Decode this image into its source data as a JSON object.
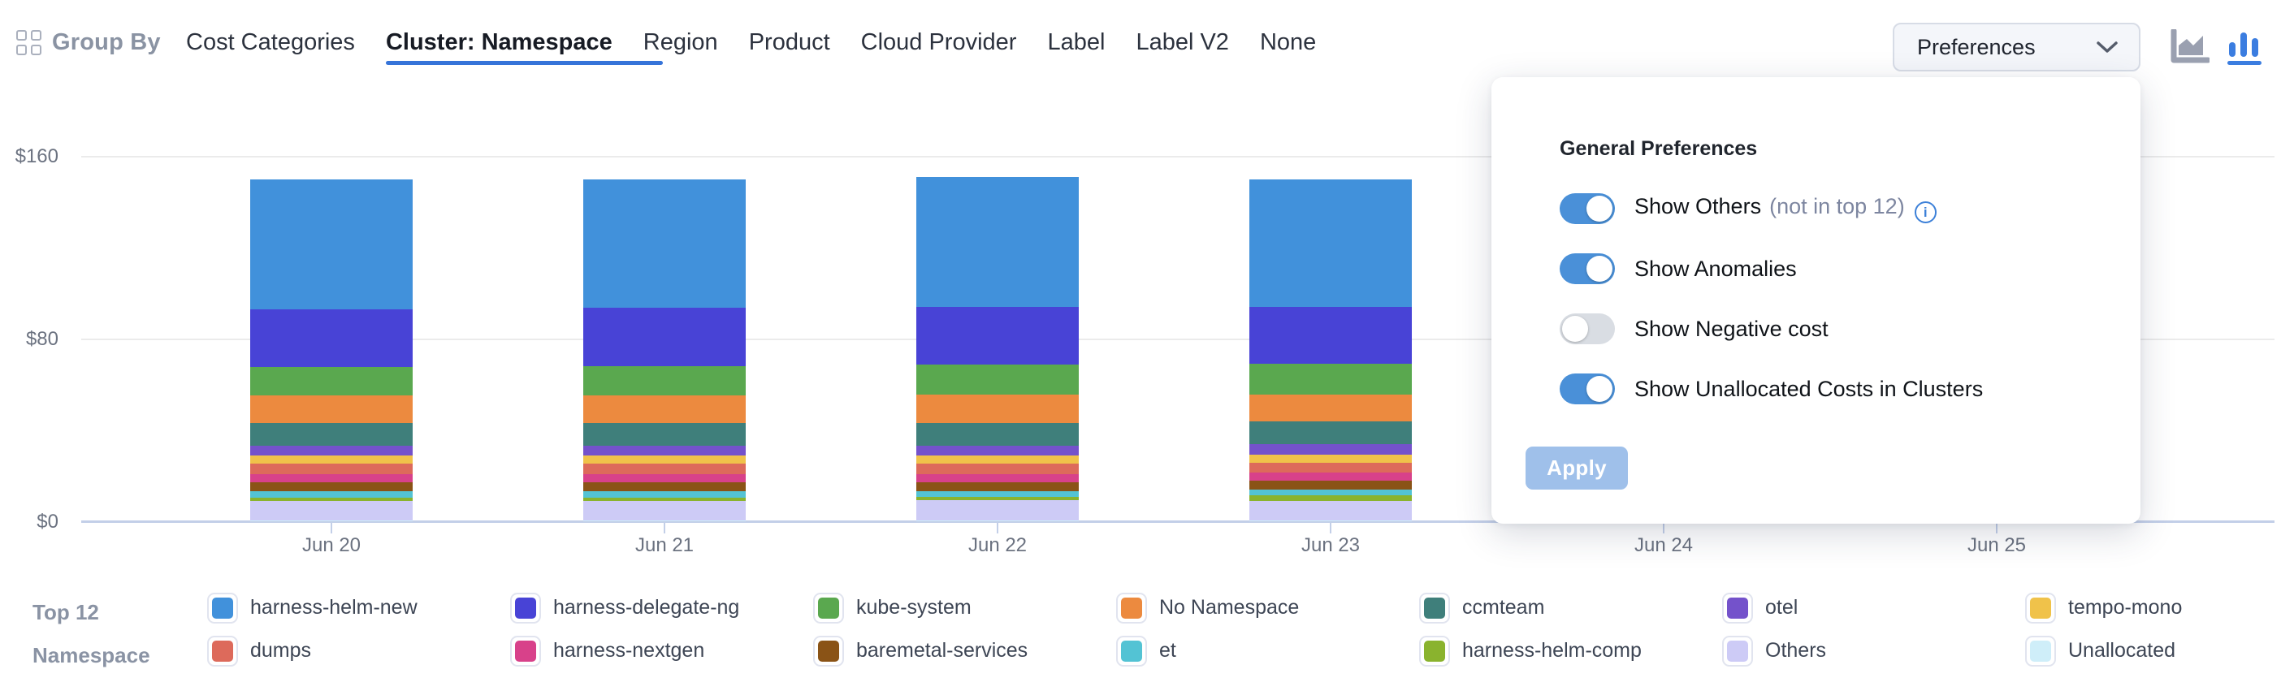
{
  "header": {
    "group_by_label": "Group By",
    "tabs": [
      {
        "label": "Cost Categories",
        "active": false
      },
      {
        "label": "Cluster: Namespace",
        "active": true
      },
      {
        "label": "Region",
        "active": false
      },
      {
        "label": "Product",
        "active": false
      },
      {
        "label": "Cloud Provider",
        "active": false
      },
      {
        "label": "Label",
        "active": false
      },
      {
        "label": "Label V2",
        "active": false
      },
      {
        "label": "None",
        "active": false
      }
    ],
    "preferences_button_label": "Preferences",
    "chart_type_icons": [
      {
        "name": "area-chart-icon",
        "active": false,
        "color": "#9aa0b0"
      },
      {
        "name": "bar-chart-icon",
        "active": true,
        "color": "#3b7de0"
      }
    ],
    "active_tab_underline_color": "#3674d9"
  },
  "preferences_popup": {
    "title": "General Preferences",
    "toggles": [
      {
        "label": "Show Others",
        "suffix": "(not in top 12)",
        "has_info_icon": true,
        "on": true
      },
      {
        "label": "Show Anomalies",
        "suffix": "",
        "has_info_icon": false,
        "on": true
      },
      {
        "label": "Show Negative cost",
        "suffix": "",
        "has_info_icon": false,
        "on": false
      },
      {
        "label": "Show Unallocated Costs in Clusters",
        "suffix": "",
        "has_info_icon": false,
        "on": true
      }
    ],
    "apply_label": "Apply",
    "apply_disabled": true,
    "toggle_on_color": "#4a90d8",
    "toggle_off_color": "#d9dde3"
  },
  "chart_data": {
    "type": "bar",
    "stacked": true,
    "x": [
      "Jun 20",
      "Jun 21",
      "Jun 22",
      "Jun 23",
      "Jun 24",
      "Jun 25"
    ],
    "ylabel": "",
    "yticks": [
      "$0",
      "$80",
      "$160"
    ],
    "ylim": [
      0,
      160
    ],
    "grid": true,
    "note": "Columns for Jun 24 and Jun 25 are hidden behind the open Preferences popup; only their x-axis labels are visible.",
    "series": [
      {
        "name": "harness-helm-new",
        "color": "#4191db",
        "values": [
          57,
          56.5,
          57,
          56
        ]
      },
      {
        "name": "harness-delegate-ng",
        "color": "#4843d6",
        "values": [
          25.5,
          25.5,
          25.5,
          25
        ]
      },
      {
        "name": "kube-system",
        "color": "#5aa84f",
        "values": [
          12.5,
          13,
          13,
          13.5
        ]
      },
      {
        "name": "No Namespace",
        "color": "#ec8a3f",
        "values": [
          12,
          12,
          12.5,
          12
        ]
      },
      {
        "name": "ccmteam",
        "color": "#3f7f7b",
        "values": [
          10,
          10,
          10,
          10
        ]
      },
      {
        "name": "otel",
        "color": "#7452cb",
        "values": [
          4.5,
          4.5,
          4.5,
          4.5
        ]
      },
      {
        "name": "tempo-mono",
        "color": "#f0c24a",
        "values": [
          3.5,
          3.5,
          3.5,
          3.5
        ]
      },
      {
        "name": "dumps",
        "color": "#dd6a5b",
        "values": [
          4.5,
          4.5,
          4.5,
          4.5
        ]
      },
      {
        "name": "harness-nextgen",
        "color": "#d8418a",
        "values": [
          3.5,
          3.5,
          3.5,
          3.5
        ]
      },
      {
        "name": "baremetal-services",
        "color": "#8a5316",
        "values": [
          4,
          4,
          4,
          4
        ]
      },
      {
        "name": "et",
        "color": "#53c3d4",
        "values": [
          3,
          3,
          2.5,
          2.5
        ]
      },
      {
        "name": "harness-helm-comp",
        "color": "#8ab32e",
        "values": [
          1.5,
          1.5,
          1.5,
          2.5
        ]
      },
      {
        "name": "Others",
        "color": "#cdcbf6",
        "values": [
          8.5,
          8.5,
          9,
          8.5
        ]
      },
      {
        "name": "Unallocated",
        "color": "#cfeef9",
        "values": [
          0.3,
          0.3,
          0.3,
          0.3
        ]
      }
    ]
  },
  "legend": {
    "title_lines": [
      "Top 12",
      "Namespace"
    ],
    "items_column_major": [
      {
        "label": "harness-helm-new",
        "color": "#4191db"
      },
      {
        "label": "dumps",
        "color": "#dd6a5b"
      },
      {
        "label": "harness-delegate-ng",
        "color": "#4843d6"
      },
      {
        "label": "harness-nextgen",
        "color": "#d8418a"
      },
      {
        "label": "kube-system",
        "color": "#5aa84f"
      },
      {
        "label": "baremetal-services",
        "color": "#8a5316"
      },
      {
        "label": "No Namespace",
        "color": "#ec8a3f"
      },
      {
        "label": "et",
        "color": "#53c3d4"
      },
      {
        "label": "ccmteam",
        "color": "#3f7f7b"
      },
      {
        "label": "harness-helm-comp",
        "color": "#8ab32e"
      },
      {
        "label": "otel",
        "color": "#7452cb"
      },
      {
        "label": "Others",
        "color": "#cdcbf6"
      },
      {
        "label": "tempo-mono",
        "color": "#f0c24a"
      },
      {
        "label": "Unallocated",
        "color": "#cfeef9"
      }
    ]
  },
  "colors": {
    "accent_blue": "#3674d9",
    "axis_line": "#c3cfe8",
    "gridline": "#ebebeb",
    "axis_text": "#6b7280",
    "apply_disabled_bg": "#9fc0ea"
  }
}
